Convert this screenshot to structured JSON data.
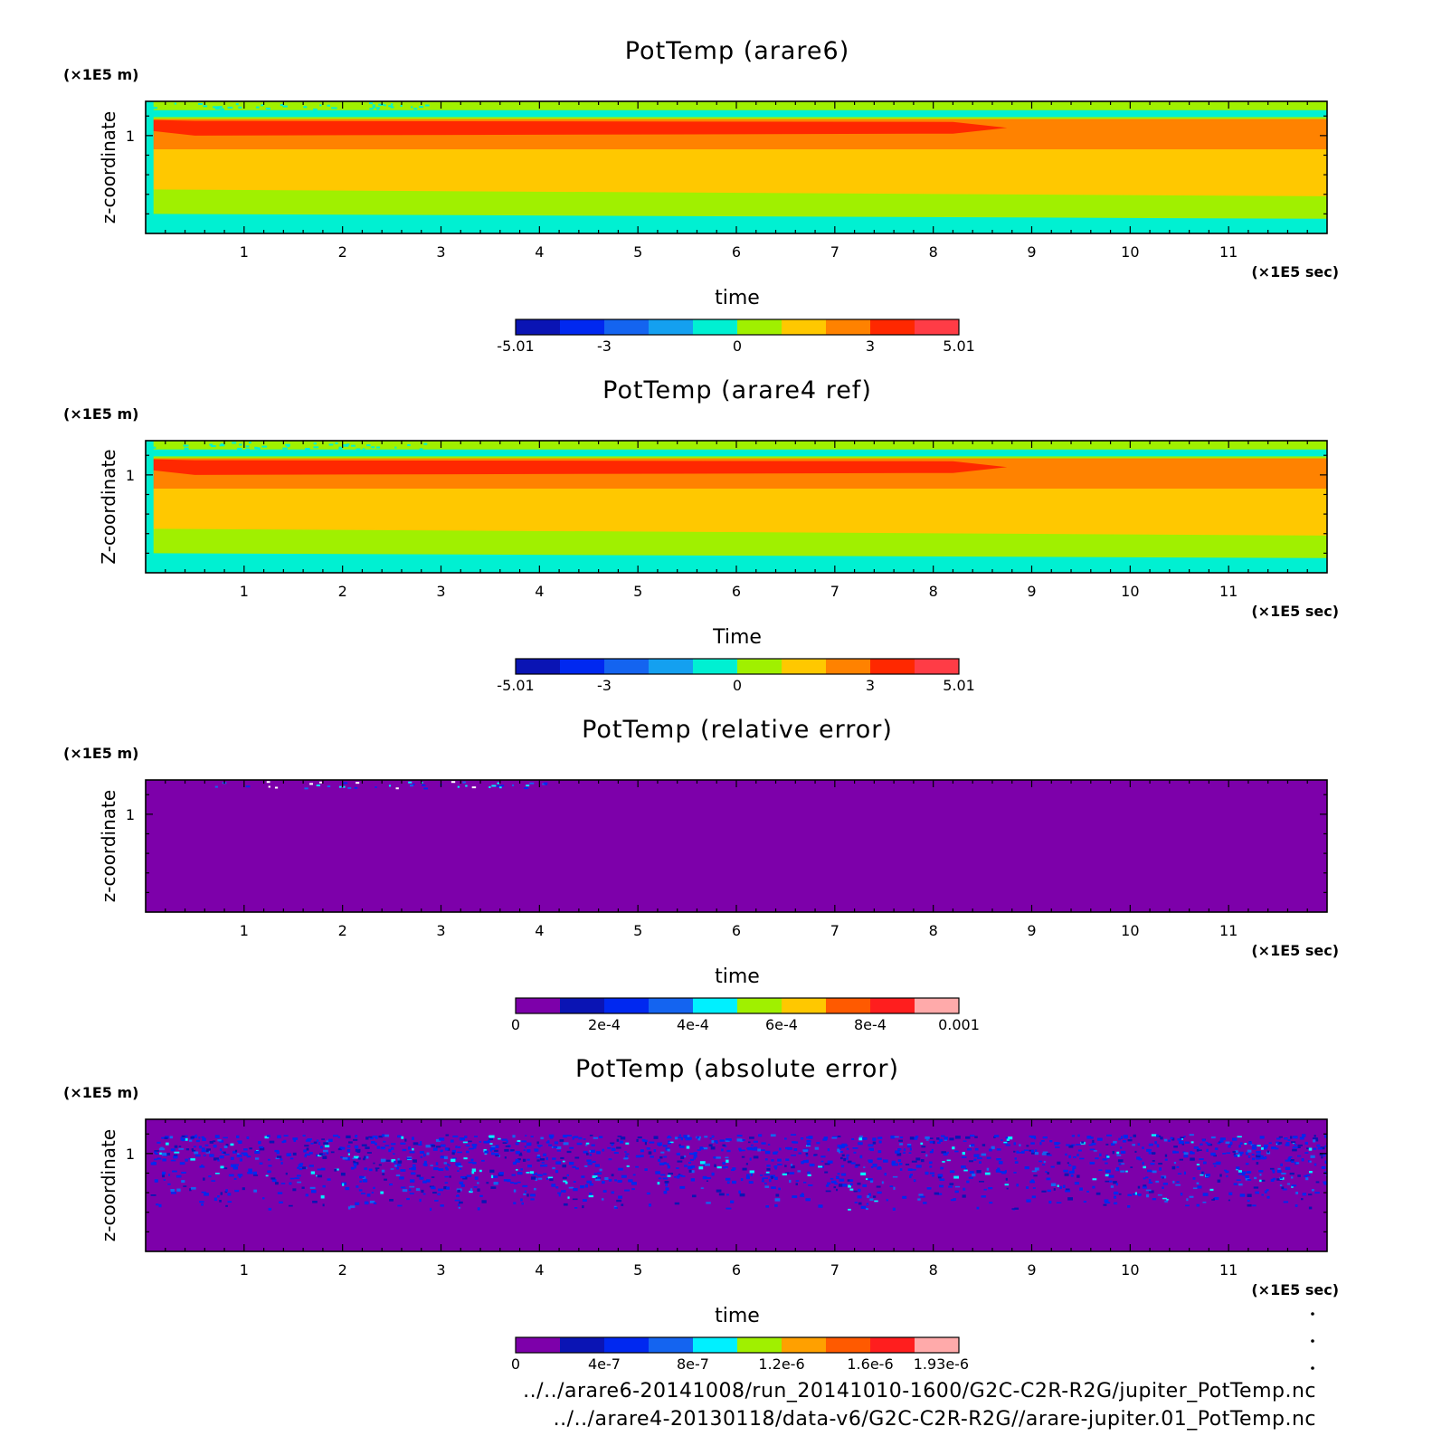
{
  "chart_data": [
    {
      "type": "heatmap",
      "title": "PotTemp (arare6)",
      "xlabel": "time",
      "ylabel": "z-coordinate",
      "x_unit": "(×1E5 sec)",
      "y_unit": "(×1E5 m)",
      "xlim": [
        0,
        12
      ],
      "ylim": [
        0,
        1.35
      ],
      "x_ticks": [
        1,
        2,
        3,
        4,
        5,
        6,
        7,
        8,
        9,
        10,
        11
      ],
      "y_ticks": [
        1
      ],
      "variant": "field",
      "colorbar": {
        "colors": [
          "#0a14b4",
          "#0028f0",
          "#1464f0",
          "#14a0f0",
          "#00f0d2",
          "#a0f000",
          "#ffc800",
          "#ff8200",
          "#ff2800",
          "#ff3c46"
        ],
        "labels": [
          "-5.01",
          "-3",
          "0",
          "3",
          "5.01"
        ],
        "label_positions": [
          0,
          2,
          5,
          8,
          10
        ]
      }
    },
    {
      "type": "heatmap",
      "title": "PotTemp (arare4 ref)",
      "xlabel": "Time",
      "ylabel": "Z-coordinate",
      "x_unit": "(×1E5 sec)",
      "y_unit": "(×1E5 m)",
      "xlim": [
        0,
        12
      ],
      "ylim": [
        0,
        1.35
      ],
      "x_ticks": [
        1,
        2,
        3,
        4,
        5,
        6,
        7,
        8,
        9,
        10,
        11
      ],
      "y_ticks": [
        1
      ],
      "variant": "field",
      "colorbar": {
        "colors": [
          "#0a14b4",
          "#0028f0",
          "#1464f0",
          "#14a0f0",
          "#00f0d2",
          "#a0f000",
          "#ffc800",
          "#ff8200",
          "#ff2800",
          "#ff3c46"
        ],
        "labels": [
          "-5.01",
          "-3",
          "0",
          "3",
          "5.01"
        ],
        "label_positions": [
          0,
          2,
          5,
          8,
          10
        ]
      }
    },
    {
      "type": "heatmap",
      "title": "PotTemp (relative error)",
      "xlabel": "time",
      "ylabel": "z-coordinate",
      "x_unit": "(×1E5 sec)",
      "y_unit": "(×1E5 m)",
      "xlim": [
        0,
        12
      ],
      "ylim": [
        0,
        1.35
      ],
      "x_ticks": [
        1,
        2,
        3,
        4,
        5,
        6,
        7,
        8,
        9,
        10,
        11
      ],
      "y_ticks": [
        1
      ],
      "variant": "rel",
      "colorbar": {
        "colors": [
          "#7d00aa",
          "#0a14b4",
          "#0028f0",
          "#1464f0",
          "#00f0ff",
          "#a0f000",
          "#ffc800",
          "#ff5a00",
          "#ff1e1e",
          "#ffaaaa"
        ],
        "labels": [
          "0",
          "2e-4",
          "4e-4",
          "6e-4",
          "8e-4",
          "0.001"
        ],
        "label_positions": [
          0,
          2,
          4,
          6,
          8,
          10
        ]
      }
    },
    {
      "type": "heatmap",
      "title": "PotTemp (absolute error)",
      "xlabel": "time",
      "ylabel": "z-coordinate",
      "x_unit": "(×1E5 sec)",
      "y_unit": "(×1E5 m)",
      "xlim": [
        0,
        12
      ],
      "ylim": [
        0,
        1.35
      ],
      "x_ticks": [
        1,
        2,
        3,
        4,
        5,
        6,
        7,
        8,
        9,
        10,
        11
      ],
      "y_ticks": [
        1
      ],
      "variant": "abs",
      "colorbar": {
        "colors": [
          "#7d00aa",
          "#0a14b4",
          "#0028f0",
          "#1464f0",
          "#00f0ff",
          "#a0f000",
          "#ffa000",
          "#ff5a00",
          "#ff1e1e",
          "#ffaaaa"
        ],
        "labels": [
          "0",
          "4e-7",
          "8e-7",
          "1.2e-6",
          "1.6e-6",
          "1.93e-6"
        ],
        "label_positions": [
          0,
          2,
          4,
          6,
          8,
          9.6
        ]
      }
    }
  ],
  "footer": {
    "file1": "../../arare6-20141008/run_20141010-1600/G2C-C2R-R2G/jupiter_PotTemp.nc",
    "file2": "../../arare4-20130118/data-v6/G2C-C2R-R2G//arare-jupiter.01_PotTemp.nc"
  }
}
